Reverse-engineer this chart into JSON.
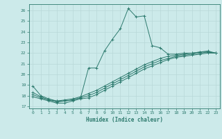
{
  "xlabel": "Humidex (Indice chaleur)",
  "background_color": "#cceaea",
  "grid_color": "#b8d8d8",
  "line_color": "#2d7a6e",
  "xlim": [
    -0.5,
    23.5
  ],
  "ylim": [
    16.8,
    26.6
  ],
  "yticks": [
    17,
    18,
    19,
    20,
    21,
    22,
    23,
    24,
    25,
    26
  ],
  "xticks": [
    0,
    1,
    2,
    3,
    4,
    5,
    6,
    7,
    8,
    9,
    10,
    11,
    12,
    13,
    14,
    15,
    16,
    17,
    18,
    19,
    20,
    21,
    22,
    23
  ],
  "series": [
    {
      "x": [
        0,
        1,
        2,
        3,
        4,
        5,
        6,
        7,
        8,
        9,
        10,
        11,
        12,
        13,
        14,
        15,
        16,
        17,
        18,
        19,
        20,
        21,
        22,
        23
      ],
      "y": [
        18.9,
        18.0,
        17.7,
        17.5,
        17.5,
        17.6,
        17.8,
        20.6,
        20.6,
        22.2,
        23.3,
        24.3,
        26.2,
        25.4,
        25.5,
        22.7,
        22.5,
        21.9,
        21.9,
        22.0,
        22.0,
        22.1,
        22.2,
        22.0
      ]
    },
    {
      "x": [
        0,
        1,
        2,
        3,
        4,
        5,
        6,
        7,
        8,
        9,
        10,
        11,
        12,
        13,
        14,
        15,
        16,
        17,
        18,
        19,
        20,
        21,
        22,
        23
      ],
      "y": [
        18.3,
        17.9,
        17.6,
        17.5,
        17.6,
        17.7,
        17.9,
        18.2,
        18.5,
        18.9,
        19.3,
        19.7,
        20.1,
        20.5,
        20.9,
        21.2,
        21.5,
        21.7,
        21.8,
        21.9,
        22.0,
        22.1,
        22.1,
        22.0
      ]
    },
    {
      "x": [
        0,
        1,
        2,
        3,
        4,
        5,
        6,
        7,
        8,
        9,
        10,
        11,
        12,
        13,
        14,
        15,
        16,
        17,
        18,
        19,
        20,
        21,
        22,
        23
      ],
      "y": [
        18.1,
        17.8,
        17.6,
        17.4,
        17.5,
        17.6,
        17.8,
        18.0,
        18.3,
        18.7,
        19.1,
        19.5,
        19.9,
        20.3,
        20.7,
        21.0,
        21.3,
        21.5,
        21.7,
        21.8,
        21.9,
        22.0,
        22.1,
        22.0
      ]
    },
    {
      "x": [
        0,
        1,
        2,
        3,
        4,
        5,
        6,
        7,
        8,
        9,
        10,
        11,
        12,
        13,
        14,
        15,
        16,
        17,
        18,
        19,
        20,
        21,
        22,
        23
      ],
      "y": [
        17.9,
        17.7,
        17.5,
        17.3,
        17.3,
        17.5,
        17.7,
        17.8,
        18.1,
        18.5,
        18.9,
        19.3,
        19.7,
        20.1,
        20.5,
        20.8,
        21.1,
        21.4,
        21.6,
        21.7,
        21.8,
        21.9,
        22.0,
        22.0
      ]
    }
  ]
}
